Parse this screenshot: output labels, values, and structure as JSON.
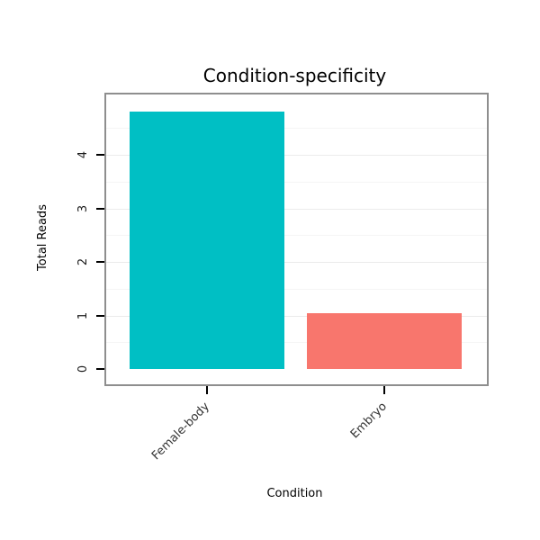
{
  "chart_data": {
    "type": "bar",
    "title": "Condition-specificity",
    "xlabel": "Condition",
    "ylabel": "Total Reads",
    "categories": [
      "Female-body",
      "Embryo"
    ],
    "values": [
      4.8,
      1.05
    ],
    "yticks": [
      0,
      1,
      2,
      3,
      4
    ],
    "ylim": [
      0,
      5.05
    ],
    "bar_colors": [
      "#00BFC4",
      "#F8766D"
    ],
    "grid": "horizontal-light",
    "legend": "none",
    "panel_border_color": "#8E8E8E",
    "background": "#FFFFFF"
  }
}
